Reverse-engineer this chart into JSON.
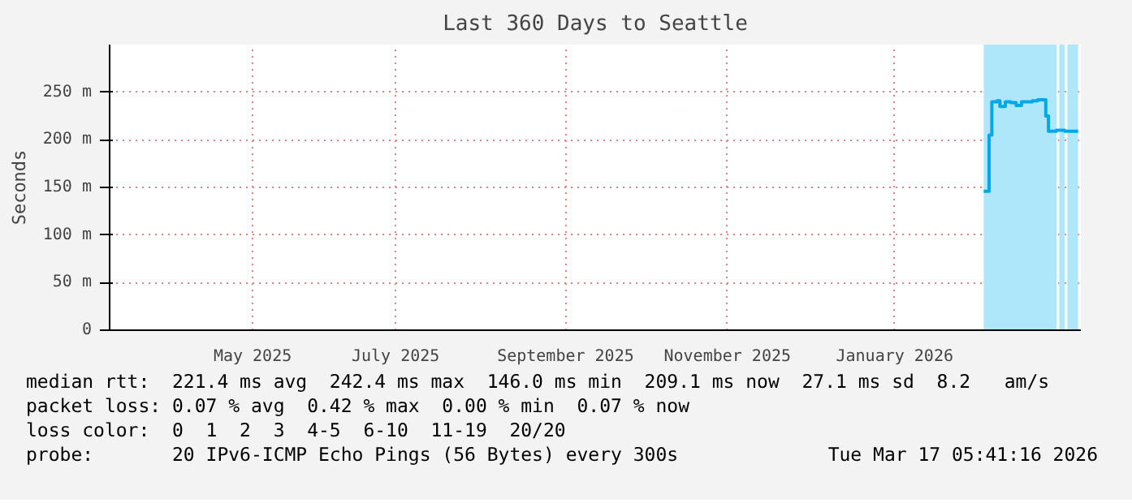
{
  "chart_data": {
    "type": "step",
    "title": "Last 360 Days to Seattle",
    "ylabel": "Seconds",
    "x": [
      "2026-02-09",
      "2026-02-10",
      "2026-02-11",
      "2026-02-12",
      "2026-02-14",
      "2026-02-15",
      "2026-02-17",
      "2026-02-19",
      "2026-02-21",
      "2026-02-23",
      "2026-02-25",
      "2026-02-27",
      "2026-03-01",
      "2026-03-03",
      "2026-03-04",
      "2026-03-05",
      "2026-03-08",
      "2026-03-11",
      "2026-03-14",
      "2026-03-16"
    ],
    "series": [
      {
        "color": "#00a8e8",
        "values": [
          146,
          146,
          205,
          240,
          241,
          235,
          240,
          239,
          236,
          240,
          240,
          241,
          242,
          242,
          225,
          209,
          210,
          209,
          209,
          209
        ]
      }
    ],
    "xlim": [
      "2025-03-22",
      "2026-03-17"
    ],
    "xticks": [
      {
        "value": "2025-05-14",
        "label": "May 2025"
      },
      {
        "value": "2025-07-06",
        "label": "July 2025"
      },
      {
        "value": "2025-09-07",
        "label": "September 2025"
      },
      {
        "value": "2025-11-06",
        "label": "November 2025"
      },
      {
        "value": "2026-01-07",
        "label": "January 2026"
      }
    ],
    "ylim": [
      0,
      300
    ],
    "yticks": [
      {
        "value": 0,
        "label": "0"
      },
      {
        "value": 50,
        "label": "50 m"
      },
      {
        "value": 100,
        "label": "100 m"
      },
      {
        "value": 150,
        "label": "150 m"
      },
      {
        "value": 200,
        "label": "200 m"
      },
      {
        "value": 250,
        "label": "250 m"
      }
    ],
    "bands": [
      {
        "axis": "x",
        "from": "2026-02-09",
        "to": "2026-03-08",
        "label": null,
        "color": "#aee6fa"
      },
      {
        "axis": "x",
        "from": "2026-03-09",
        "to": "2026-03-11",
        "label": null,
        "color": "#aee6fa"
      },
      {
        "axis": "x",
        "from": "2026-03-12",
        "to": "2026-03-16",
        "label": null,
        "color": "#aee6fa"
      }
    ],
    "grid": true,
    "annotations": [
      "median rtt:  221.4 ms avg  242.4 ms max  146.0 ms min  209.1 ms now  27.1 ms sd  8.2   am/s",
      "packet loss: 0.07 % avg  0.42 % max  0.00 % min  0.07 % now",
      "loss color:  0  1  2  3  4-5  6-10  11-19  20/20",
      "probe:       20 IPv6-ICMP Echo Pings (56 Bytes) every 300s",
      "Tue Mar 17 05:41:16 2026"
    ]
  }
}
